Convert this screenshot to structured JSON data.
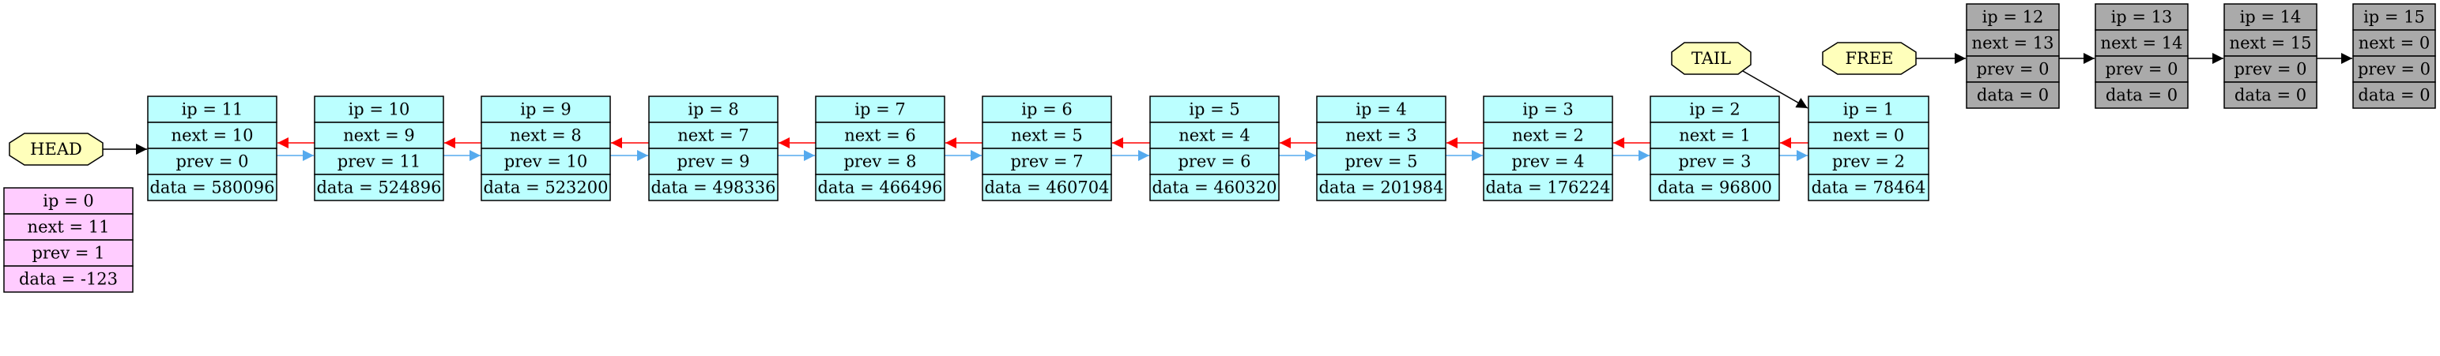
{
  "colors": {
    "active_fill": "#bbffff",
    "zero_fill": "#ffccff",
    "free_fill": "#aaaaaa",
    "label_fill": "#ffffbb",
    "next_arrow": "#ff0000",
    "prev_arrow": "#55aaee",
    "plain_arrow": "#000000",
    "border": "#000000"
  },
  "labels": {
    "head": "HEAD",
    "tail": "TAIL",
    "free": "FREE"
  },
  "zero_node": {
    "ip": "ip = 0",
    "next": "next = 11",
    "prev": "prev = 1",
    "data": "data = -123"
  },
  "active_nodes": [
    {
      "ip": "ip = 11",
      "next": "next = 10",
      "prev": "prev = 0",
      "data": "data = 580096"
    },
    {
      "ip": "ip = 10",
      "next": "next = 9",
      "prev": "prev = 11",
      "data": "data = 524896"
    },
    {
      "ip": "ip = 9",
      "next": "next = 8",
      "prev": "prev = 10",
      "data": "data = 523200"
    },
    {
      "ip": "ip = 8",
      "next": "next = 7",
      "prev": "prev = 9",
      "data": "data = 498336"
    },
    {
      "ip": "ip = 7",
      "next": "next = 6",
      "prev": "prev = 8",
      "data": "data = 466496"
    },
    {
      "ip": "ip = 6",
      "next": "next = 5",
      "prev": "prev = 7",
      "data": "data = 460704"
    },
    {
      "ip": "ip = 5",
      "next": "next = 4",
      "prev": "prev = 6",
      "data": "data = 460320"
    },
    {
      "ip": "ip = 4",
      "next": "next = 3",
      "prev": "prev = 5",
      "data": "data = 201984"
    },
    {
      "ip": "ip = 3",
      "next": "next = 2",
      "prev": "prev = 4",
      "data": "data = 176224"
    },
    {
      "ip": "ip = 2",
      "next": "next = 1",
      "prev": "prev = 3",
      "data": "data = 96800"
    },
    {
      "ip": "ip = 1",
      "next": "next = 0",
      "prev": "prev = 2",
      "data": "data = 78464"
    }
  ],
  "free_nodes": [
    {
      "ip": "ip = 12",
      "next": "next = 13",
      "prev": "prev = 0",
      "data": "data = 0"
    },
    {
      "ip": "ip = 13",
      "next": "next = 14",
      "prev": "prev = 0",
      "data": "data = 0"
    },
    {
      "ip": "ip = 14",
      "next": "next = 15",
      "prev": "prev = 0",
      "data": "data = 0"
    },
    {
      "ip": "ip = 15",
      "next": "next = 0",
      "prev": "prev = 0",
      "data": "data = 0"
    }
  ]
}
